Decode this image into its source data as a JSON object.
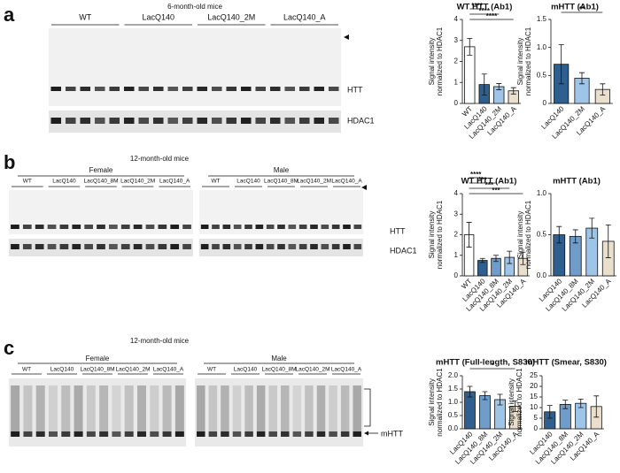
{
  "blots": [
    {
      "panel": "a",
      "title": "6-month-old mice",
      "sexes": [
        {
          "groups": [
            "WT",
            "LacQ140",
            "LacQ140_2M",
            "LacQ140_A"
          ]
        }
      ],
      "bands": [
        "HTT",
        "HDAC1"
      ]
    },
    {
      "panel": "b",
      "title": "12-month-old mice",
      "sexes": [
        {
          "name": "Female",
          "groups": [
            "WT",
            "LacQ140",
            "LacQ140_8M",
            "LacQ140_2M",
            "LacQ140_A"
          ]
        },
        {
          "name": "Male",
          "groups": [
            "WT",
            "LacQ140",
            "LacQ140_8M",
            "LacQ140_2M",
            "LacQ140_A"
          ]
        }
      ],
      "bands": [
        "HTT",
        "HDAC1"
      ]
    },
    {
      "panel": "c",
      "title": "12-month-old mice",
      "sexes": [
        {
          "name": "Female",
          "groups": [
            "WT",
            "LacQ140",
            "LacQ140_8M",
            "LacQ140_2M",
            "LacQ140_A"
          ]
        },
        {
          "name": "Male",
          "groups": [
            "WT",
            "LacQ140",
            "LacQ140_8M",
            "LacQ140_2M",
            "LacQ140_A"
          ]
        }
      ],
      "bands": [
        "mHTT"
      ]
    }
  ],
  "chart_data": [
    {
      "type": "bar",
      "title": "WT HTT (Ab1)",
      "ylabel": [
        "Signal intensity",
        "normalized to HDAC1"
      ],
      "categories": [
        "WT",
        "LacQ140",
        "LacQ140_2M",
        "LacQ140_A"
      ],
      "values": [
        2.7,
        0.9,
        0.8,
        0.6
      ],
      "errors": [
        0.4,
        0.5,
        0.15,
        0.15
      ],
      "colors": [
        "#ffffff",
        "#2f5f8f",
        "#9ec5e8",
        "#e9dfcc"
      ],
      "ylim": [
        0,
        4
      ],
      "yticks": [
        0,
        1,
        2,
        3,
        4
      ],
      "significance": [
        "****",
        "****",
        "****"
      ]
    },
    {
      "type": "bar",
      "title": "mHTT (Ab1)",
      "ylabel": [
        "Signal intensity",
        "normalized to HDAC1"
      ],
      "categories": [
        "LacQ140",
        "LacQ140_2M",
        "LacQ140_A"
      ],
      "values": [
        0.7,
        0.45,
        0.25
      ],
      "errors": [
        0.35,
        0.1,
        0.1
      ],
      "colors": [
        "#2f5f8f",
        "#9ec5e8",
        "#e9dfcc"
      ],
      "ylim": [
        0,
        1.5
      ],
      "yticks": [
        0,
        0.5,
        {
          "value": 1,
          "label": "1.0"
        },
        1.5
      ],
      "significance": [
        "**"
      ]
    },
    {
      "type": "bar",
      "title": "WT HTT (Ab1)",
      "ylabel": [
        "Signal intensity",
        "normalized to HDAC1"
      ],
      "categories": [
        "WT",
        "LacQ140",
        "LacQ140_8M",
        "LacQ140_2M",
        "LacQ140_A"
      ],
      "values": [
        2.0,
        0.75,
        0.85,
        0.9,
        0.85
      ],
      "errors": [
        0.6,
        0.1,
        0.15,
        0.3,
        0.3
      ],
      "colors": [
        "#ffffff",
        "#2f5f8f",
        "#6f9cc8",
        "#9ec5e8",
        "#e9dfcc"
      ],
      "ylim": [
        0,
        4
      ],
      "yticks": [
        0,
        1,
        2,
        3,
        4
      ],
      "significance": [
        "****",
        "***",
        "***",
        "***"
      ]
    },
    {
      "type": "bar",
      "title": "mHTT (Ab1)",
      "ylabel": [
        "Signal intensity",
        "normalized to HDAC1"
      ],
      "categories": [
        "LacQ140",
        "LacQ140_8M",
        "LacQ140_2M",
        "LacQ140_A"
      ],
      "values": [
        0.5,
        0.48,
        0.58,
        0.42
      ],
      "errors": [
        0.1,
        0.08,
        0.12,
        0.2
      ],
      "colors": [
        "#2f5f8f",
        "#6f9cc8",
        "#9ec5e8",
        "#e9dfcc"
      ],
      "ylim": [
        0,
        1
      ],
      "yticks": [
        {
          "value": 0,
          "label": "0.0"
        },
        0.5,
        {
          "value": 1,
          "label": "1.0"
        }
      ],
      "significance": []
    },
    {
      "type": "bar",
      "title": "mHTT (Full-length, S830)",
      "ylabel": [
        "Signal intensity",
        "normalized to HDAC1"
      ],
      "categories": [
        "LacQ140",
        "LacQ140_8M",
        "LacQ140_2M",
        "LacQ140_A"
      ],
      "values": [
        1.4,
        1.25,
        1.1,
        0.85
      ],
      "errors": [
        0.2,
        0.15,
        0.2,
        0.2
      ],
      "colors": [
        "#2f5f8f",
        "#6f9cc8",
        "#9ec5e8",
        "#e9dfcc"
      ],
      "ylim": [
        0,
        2
      ],
      "yticks": [
        {
          "value": 0,
          "label": "0.0"
        },
        0.5,
        {
          "value": 1,
          "label": "1.0"
        },
        1.5,
        {
          "value": 2,
          "label": "2.0"
        }
      ],
      "significance": [
        "*"
      ]
    },
    {
      "type": "bar",
      "title": "mHTT (Smear, S830)",
      "ylabel": [
        "Signal intensity",
        "normalized to HDAC1"
      ],
      "categories": [
        "LacQ140",
        "LacQ140_8M",
        "LacQ140_2M",
        "LacQ140_A"
      ],
      "values": [
        8,
        11.5,
        12,
        10.5
      ],
      "errors": [
        3,
        2,
        2,
        5
      ],
      "colors": [
        "#2f5f8f",
        "#6f9cc8",
        "#9ec5e8",
        "#e9dfcc"
      ],
      "ylim": [
        0,
        25
      ],
      "yticks": [
        0,
        5,
        10,
        15,
        20,
        25
      ],
      "significance": []
    }
  ]
}
